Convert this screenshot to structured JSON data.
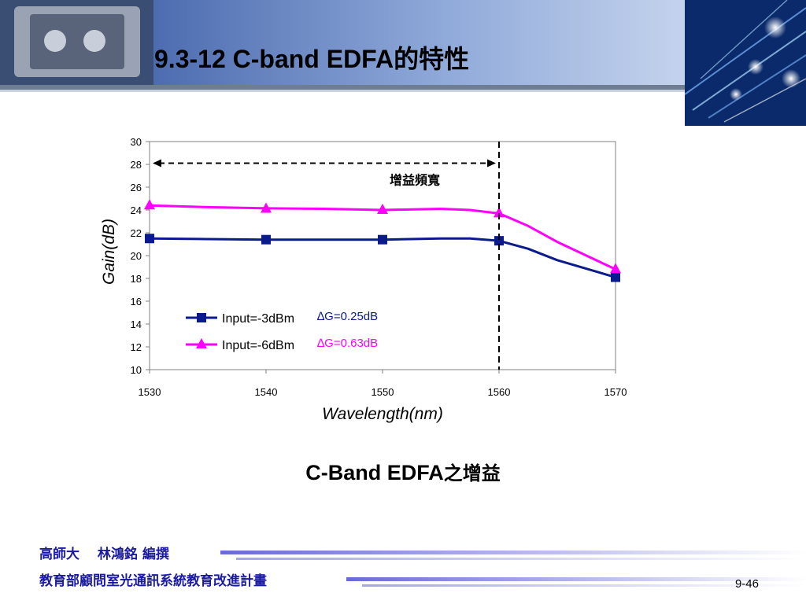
{
  "slide": {
    "title": "9.3-12 C-band EDFA的特性",
    "caption_latin": "C-Band EDFA",
    "caption_cjk": "之增益",
    "footer_line_1": "高師大　 林鴻銘 編撰",
    "footer_line_2": "教育部顧問室光通訊系統教育改進計畫",
    "page_number": "9-46"
  },
  "colors": {
    "series_1": "#0b1a8c",
    "series_2": "#ff00ff",
    "banner_dark": "#1f3f8f",
    "banner_light": "#d8e3f5",
    "footer_bar": "#6a6ad8"
  },
  "icons": [
    "dashed-double-arrow-icon",
    "square-marker-icon",
    "triangle-marker-icon"
  ],
  "chart_data": {
    "type": "line",
    "title": "",
    "xlabel": "Wavelength(nm)",
    "ylabel": "Gain(dB)",
    "xlim": [
      1530,
      1570
    ],
    "ylim": [
      10,
      30
    ],
    "xticks": [
      1530,
      1540,
      1550,
      1560,
      1570
    ],
    "yticks": [
      10,
      12,
      14,
      16,
      18,
      20,
      22,
      24,
      26,
      28,
      30
    ],
    "grid": false,
    "legend": "lower-left",
    "series": [
      {
        "name": "Input=-3dBm",
        "marker": "square",
        "curve_x": [
          1530,
          1535,
          1540,
          1545,
          1550,
          1555,
          1557.5,
          1560,
          1562.5,
          1565,
          1570
        ],
        "curve_y": [
          21.5,
          21.45,
          21.4,
          21.4,
          21.4,
          21.5,
          21.5,
          21.3,
          20.6,
          19.6,
          18.1
        ],
        "x": [
          1530,
          1540,
          1550,
          1560,
          1570
        ],
        "y": [
          21.5,
          21.4,
          21.4,
          21.3,
          18.1
        ],
        "annotation": "∆G=0.25dB"
      },
      {
        "name": "Input=-6dBm",
        "marker": "triangle",
        "curve_x": [
          1530,
          1535,
          1540,
          1545,
          1550,
          1555,
          1557.5,
          1560,
          1562.5,
          1565,
          1570
        ],
        "curve_y": [
          24.4,
          24.25,
          24.15,
          24.1,
          24.0,
          24.1,
          24.0,
          23.7,
          22.6,
          21.2,
          18.8
        ],
        "x": [
          1530,
          1540,
          1550,
          1560,
          1570
        ],
        "y": [
          24.4,
          24.1,
          24.0,
          23.7,
          18.8
        ],
        "annotation": "∆G=0.63dB"
      }
    ],
    "annotations": [
      {
        "text": "增益頻寬",
        "x_from": 1530,
        "x_to": 1560,
        "y": 28.1
      }
    ],
    "vline_x": 1560
  }
}
